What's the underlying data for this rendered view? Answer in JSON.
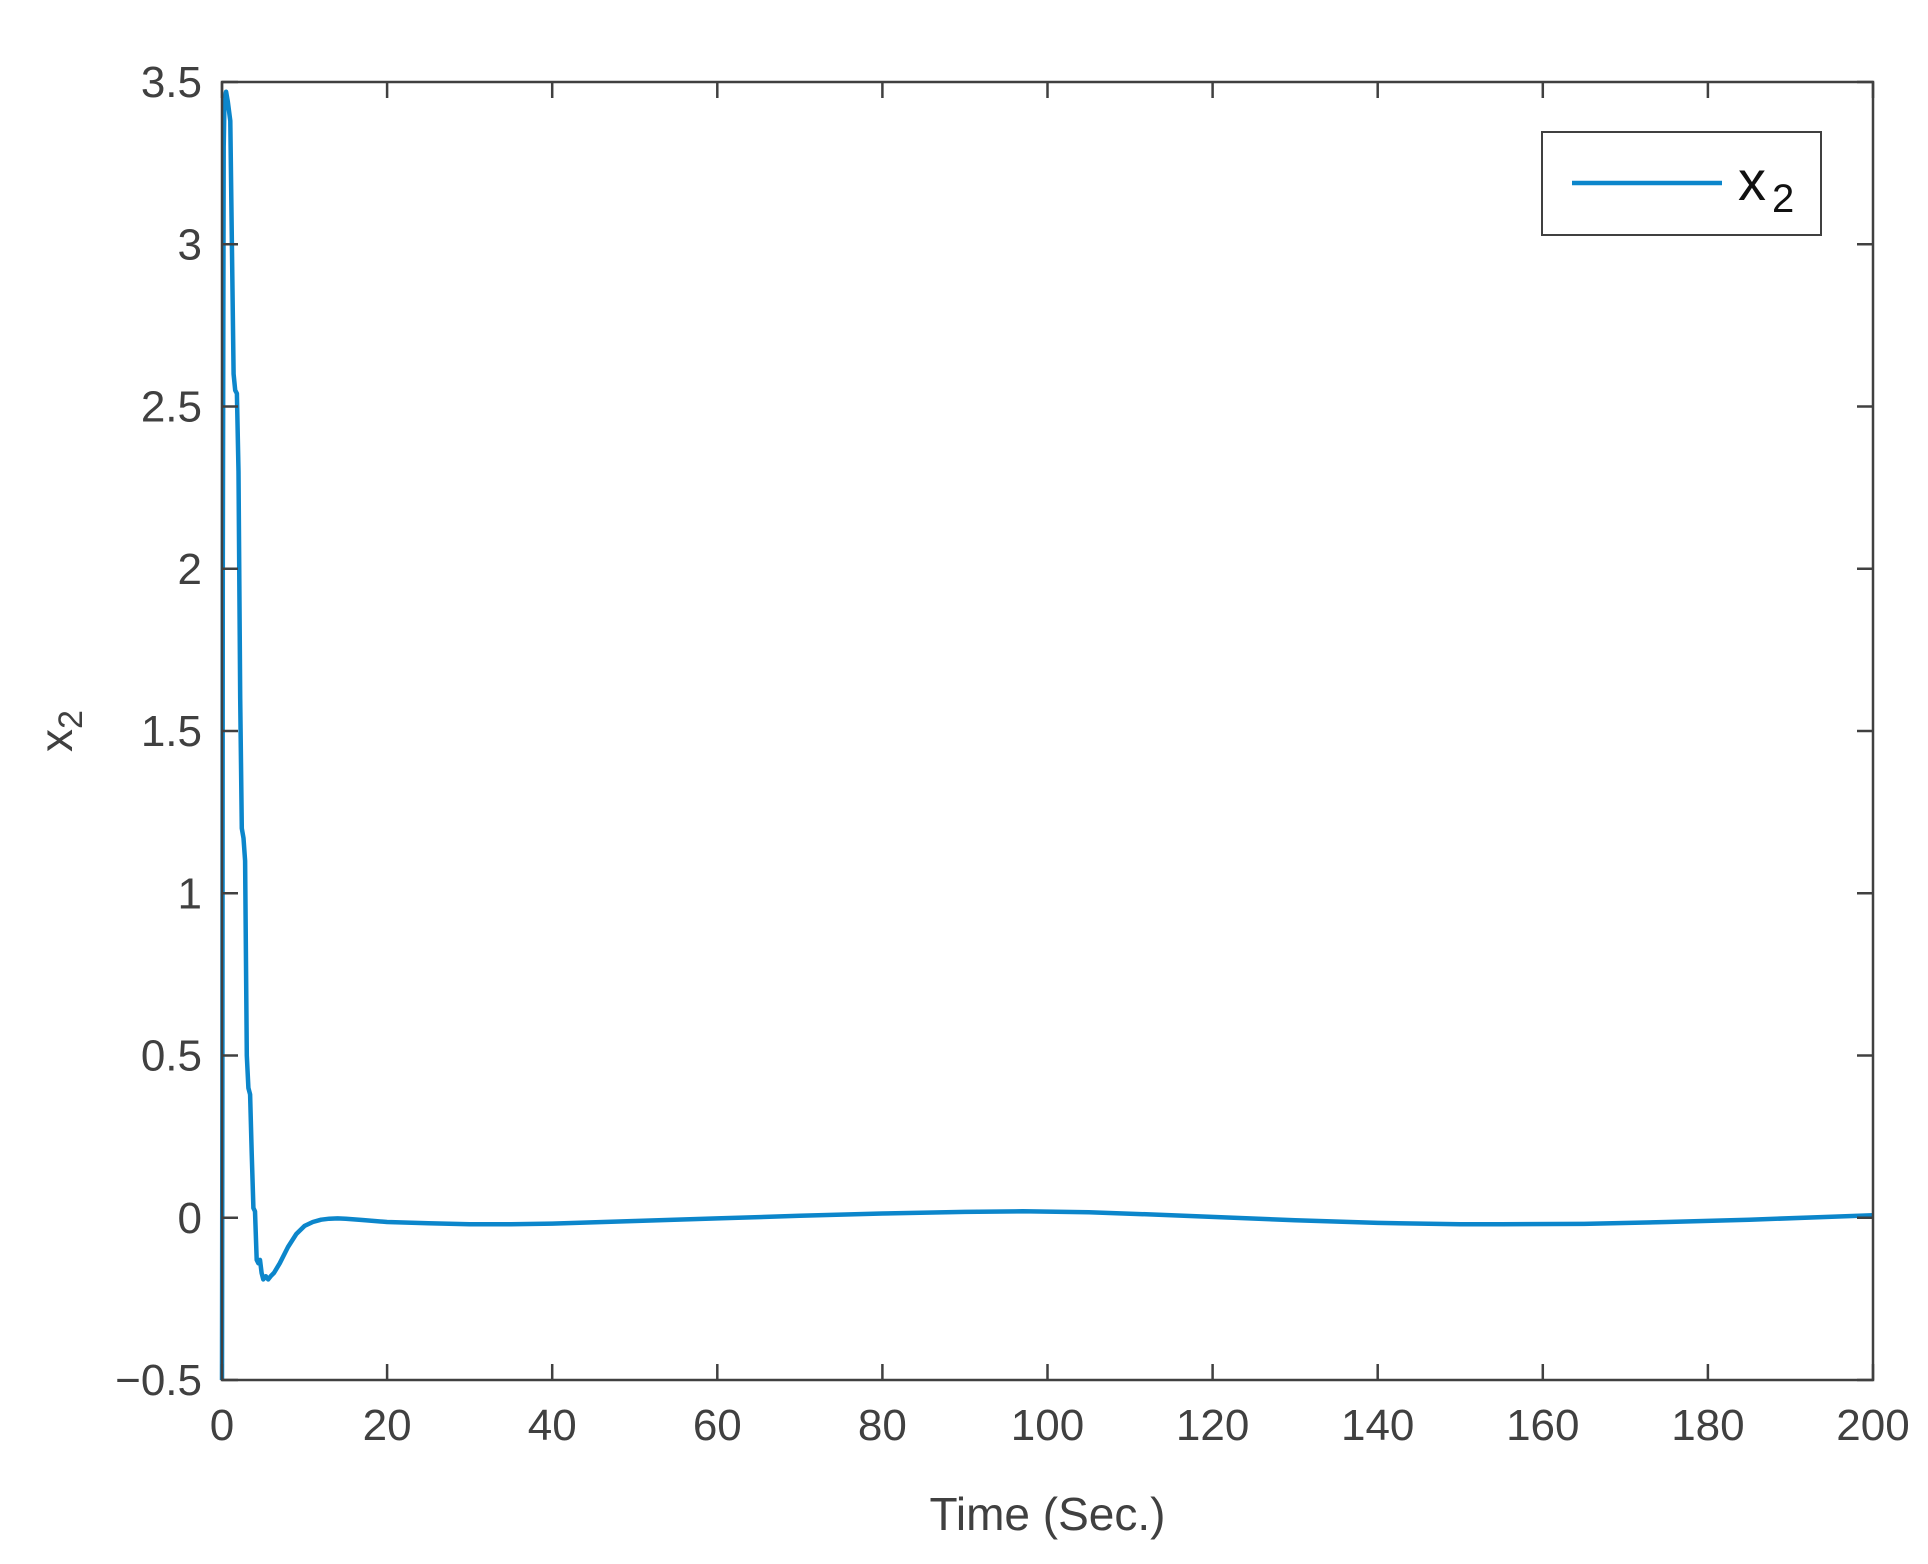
{
  "chart_data": {
    "type": "line",
    "title": "",
    "xlabel": "Time (Sec.)",
    "ylabel": {
      "base": "x",
      "sub": "2"
    },
    "xlim": [
      0,
      200
    ],
    "ylim": [
      -0.5,
      3.5
    ],
    "xticks": [
      0,
      20,
      40,
      60,
      80,
      100,
      120,
      140,
      160,
      180,
      200
    ],
    "yticks": [
      -0.5,
      0,
      0.5,
      1,
      1.5,
      2,
      2.5,
      3,
      3.5
    ],
    "xtick_labels": [
      "0",
      "20",
      "40",
      "60",
      "80",
      "100",
      "120",
      "140",
      "160",
      "180",
      "200"
    ],
    "ytick_labels": [
      "−0.5",
      "0",
      "0.5",
      "1",
      "1.5",
      "2",
      "2.5",
      "3",
      "3.5"
    ],
    "grid": false,
    "legend": {
      "position": "top-right",
      "entries": [
        {
          "base": "x",
          "sub": "2"
        }
      ]
    },
    "colors": {
      "series": "#0C86CB",
      "axes": "#404040"
    },
    "series": [
      {
        "x": [
          0,
          0.05,
          0.1,
          0.2,
          0.3,
          0.5,
          0.7,
          1.0,
          1.2,
          1.4,
          1.6,
          1.8,
          2.0,
          2.2,
          2.4,
          2.6,
          2.8,
          3.0,
          3.2,
          3.4,
          3.6,
          3.8,
          4.0,
          4.2,
          4.4,
          4.6,
          4.8,
          5.0,
          5.3,
          5.6,
          5.9,
          6.3,
          7,
          8,
          9,
          10,
          11,
          12,
          13,
          14,
          15,
          17,
          20,
          25,
          30,
          35,
          40,
          50,
          60,
          70,
          80,
          90,
          97,
          105,
          115,
          130,
          140,
          150,
          155,
          165,
          175,
          185,
          195,
          200
        ],
        "y": [
          -0.5,
          0.4,
          2.0,
          3.3,
          3.45,
          3.47,
          3.44,
          3.38,
          3.0,
          2.6,
          2.55,
          2.54,
          2.3,
          1.6,
          1.2,
          1.17,
          1.1,
          0.5,
          0.4,
          0.38,
          0.2,
          0.03,
          0.02,
          -0.13,
          -0.14,
          -0.13,
          -0.17,
          -0.19,
          -0.18,
          -0.19,
          -0.18,
          -0.17,
          -0.14,
          -0.09,
          -0.05,
          -0.025,
          -0.013,
          -0.006,
          -0.003,
          -0.002,
          -0.003,
          -0.007,
          -0.013,
          -0.017,
          -0.02,
          -0.02,
          -0.018,
          -0.01,
          -0.002,
          0.006,
          0.013,
          0.018,
          0.02,
          0.017,
          0.008,
          -0.008,
          -0.016,
          -0.02,
          -0.02,
          -0.019,
          -0.013,
          -0.006,
          0.003,
          0.008
        ]
      }
    ]
  }
}
